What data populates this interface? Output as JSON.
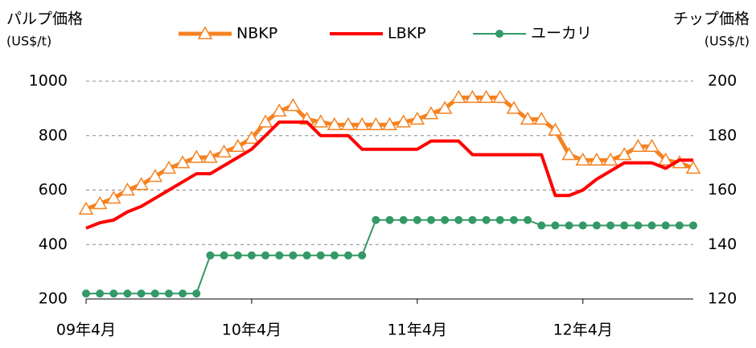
{
  "chart_data": {
    "type": "line",
    "y_title": "パルプ価格",
    "y_unit": "(US$/t)",
    "y2_title": "チップ価格",
    "y2_unit": "(US$/t)",
    "categories": [
      "09年4月",
      null,
      null,
      null,
      null,
      null,
      null,
      null,
      null,
      null,
      null,
      null,
      "10年4月",
      null,
      null,
      null,
      null,
      null,
      null,
      null,
      null,
      null,
      null,
      null,
      "11年4月",
      null,
      null,
      null,
      null,
      null,
      null,
      null,
      null,
      null,
      null,
      null,
      "12年4月",
      null,
      null,
      null,
      null,
      null,
      null,
      null,
      null
    ],
    "series": [
      {
        "name": "NBKP",
        "color": "#f58220",
        "marker": "triangle",
        "values": [
          530,
          550,
          570,
          600,
          620,
          650,
          680,
          700,
          720,
          720,
          740,
          760,
          790,
          850,
          890,
          910,
          860,
          850,
          840,
          840,
          840,
          840,
          840,
          850,
          860,
          880,
          900,
          940,
          940,
          940,
          940,
          900,
          860,
          860,
          820,
          730,
          710,
          710,
          710,
          730,
          760,
          760,
          710,
          700,
          680
        ]
      },
      {
        "name": "LBKP",
        "color": "#ff0000",
        "marker": "none",
        "values": [
          460,
          480,
          490,
          520,
          540,
          570,
          600,
          630,
          660,
          660,
          690,
          720,
          750,
          800,
          850,
          850,
          850,
          800,
          800,
          800,
          750,
          750,
          750,
          750,
          750,
          780,
          780,
          780,
          730,
          730,
          730,
          730,
          730,
          730,
          580,
          580,
          600,
          640,
          670,
          700,
          700,
          700,
          680,
          710,
          710
        ]
      },
      {
        "name": "ユーカリ",
        "color": "#339966",
        "marker": "circle",
        "axis": "y2",
        "values": [
          122,
          122,
          122,
          122,
          122,
          122,
          122,
          122,
          122,
          136,
          136,
          136,
          136,
          136,
          136,
          136,
          136,
          136,
          136,
          136,
          136,
          149,
          149,
          149,
          149,
          149,
          149,
          149,
          149,
          149,
          149,
          149,
          149,
          147,
          147,
          147,
          147,
          147,
          147,
          147,
          147,
          147,
          147,
          147,
          147
        ]
      }
    ],
    "ylim": [
      200,
      1000
    ],
    "yticks": [
      200,
      400,
      600,
      800,
      1000
    ],
    "y2lim": [
      120,
      200
    ],
    "y2ticks": [
      120,
      140,
      160,
      180,
      200
    ],
    "grid": true,
    "legend": "top"
  }
}
